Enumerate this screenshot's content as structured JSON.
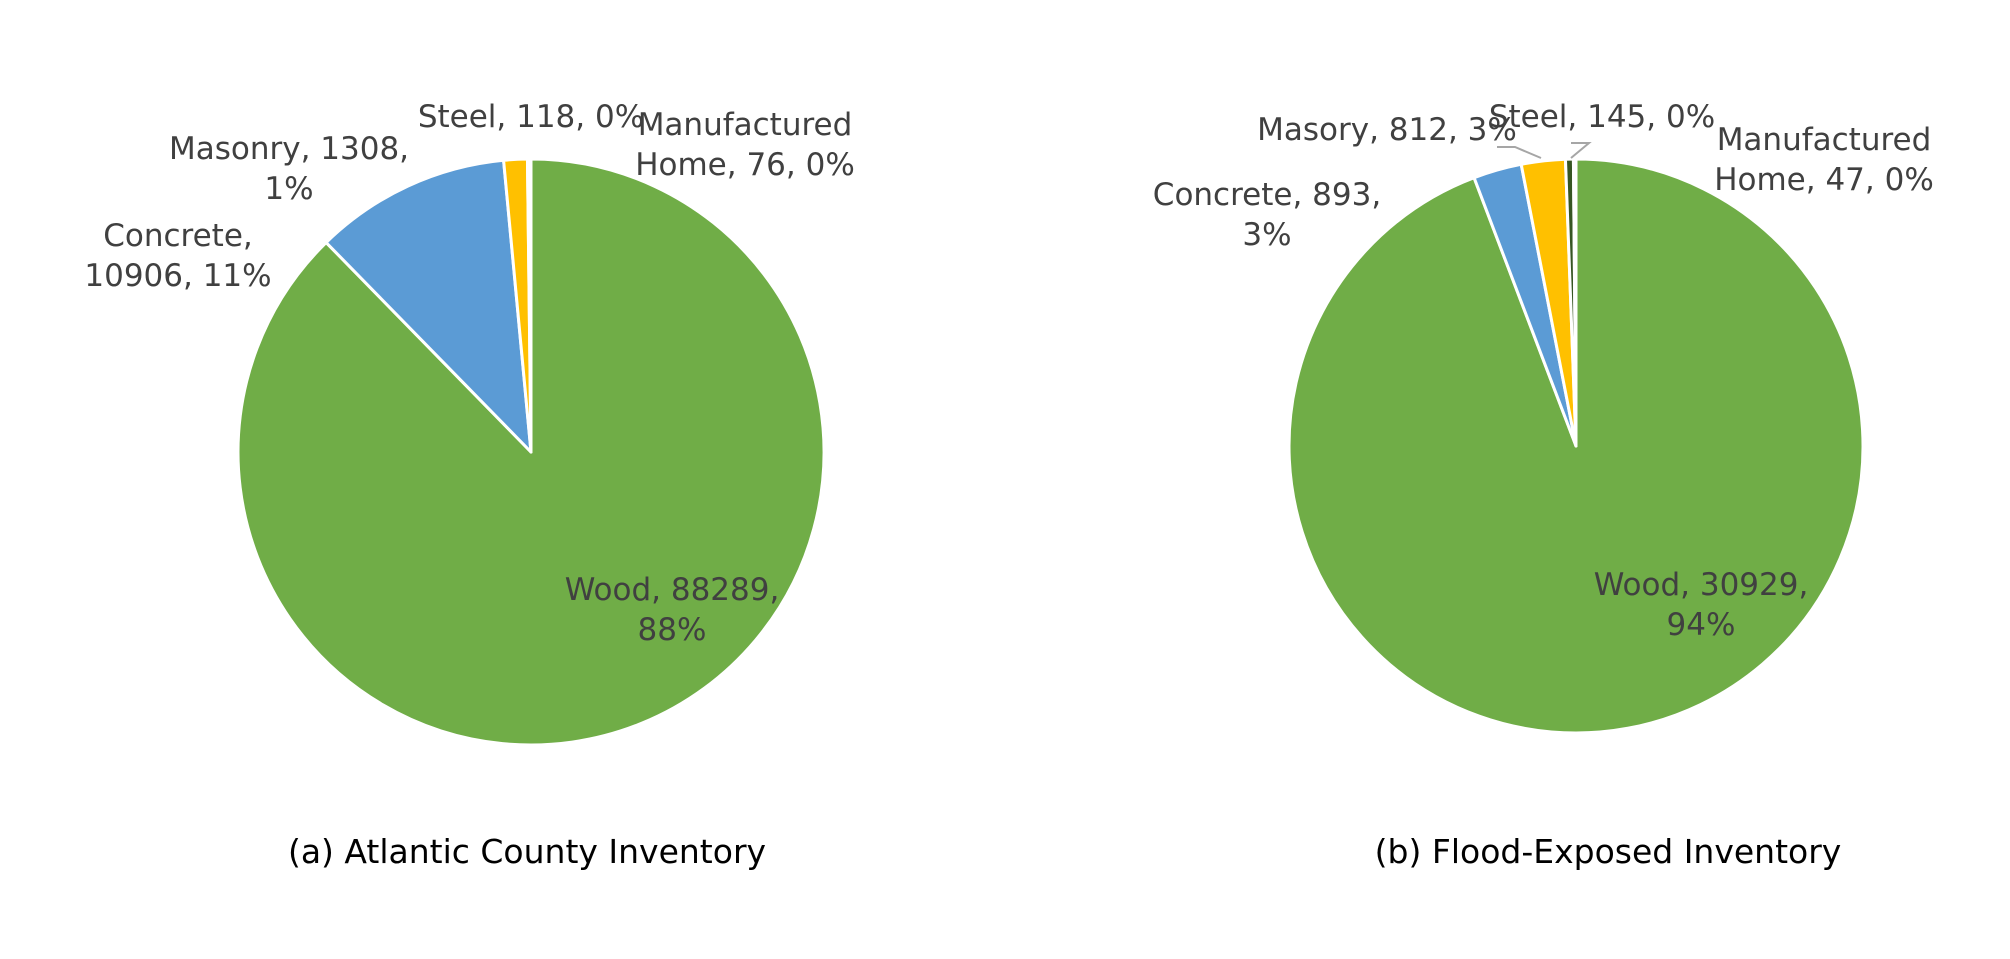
{
  "chart_data": [
    {
      "type": "pie",
      "caption": "(a) Atlantic County Inventory",
      "slices": [
        {
          "name": "Wood",
          "value": 88289,
          "percent_label": "88%",
          "color": "#70AD47",
          "label_lines": [
            "Wood, 88289,",
            "88%"
          ]
        },
        {
          "name": "Concrete",
          "value": 10906,
          "percent_label": "11%",
          "color": "#5B9BD5",
          "label_lines": [
            "Concrete,",
            "10906, 11%"
          ]
        },
        {
          "name": "Masonry",
          "value": 1308,
          "percent_label": "1%",
          "color": "#FFC000",
          "label_lines": [
            "Masonry, 1308,",
            "1%"
          ]
        },
        {
          "name": "Steel",
          "value": 118,
          "percent_label": "0%",
          "color": "#375623",
          "label_lines": [
            "Steel, 118, 0%"
          ]
        },
        {
          "name": "Manufactured Home",
          "value": 76,
          "percent_label": "0%",
          "color": "#ED7D31",
          "label_lines": [
            "Manufactured",
            "Home, 76, 0%"
          ]
        }
      ]
    },
    {
      "type": "pie",
      "caption": "(b) Flood-Exposed Inventory",
      "slices": [
        {
          "name": "Wood",
          "value": 30929,
          "percent_label": "94%",
          "color": "#70AD47",
          "label_lines": [
            "Wood, 30929,",
            "94%"
          ]
        },
        {
          "name": "Concrete",
          "value": 893,
          "percent_label": "3%",
          "color": "#5B9BD5",
          "label_lines": [
            "Concrete, 893,",
            "3%"
          ]
        },
        {
          "name": "Masory",
          "value": 812,
          "percent_label": "3%",
          "color": "#FFC000",
          "label_lines": [
            "Masory, 812, 3%"
          ]
        },
        {
          "name": "Steel",
          "value": 145,
          "percent_label": "0%",
          "color": "#375623",
          "label_lines": [
            "Steel, 145, 0%"
          ]
        },
        {
          "name": "Manufactured Home",
          "value": 47,
          "percent_label": "0%",
          "color": "#ED7D31",
          "label_lines": [
            "Manufactured",
            "Home, 47, 0%"
          ]
        }
      ]
    }
  ]
}
